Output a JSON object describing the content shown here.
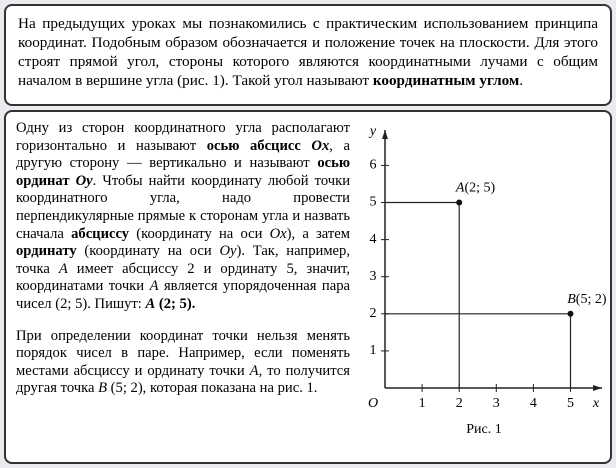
{
  "intro": {
    "runs": [
      {
        "text": "На предыдущих уроках мы познакомились с практическим использованием принципа координат. Подобным образом обозначается и положение точек на плоскости. Для этого строят прямой угол, стороны которого являются координатными лучами с общим началом в вершине угла (рис. 1). Такой угол называют "
      },
      {
        "text": "координатным углом",
        "style": "b"
      },
      {
        "text": "."
      }
    ]
  },
  "paragraphs": [
    {
      "runs": [
        {
          "text": "Одну из сторон координатного угла располагают горизонтально и называют "
        },
        {
          "text": "осью абсцисс ",
          "style": "b"
        },
        {
          "text": "Ox",
          "style": "bi"
        },
        {
          "text": ", а другую сторону — вертикально и называют "
        },
        {
          "text": "осью ординат ",
          "style": "b"
        },
        {
          "text": "Oy",
          "style": "bi"
        },
        {
          "text": ". Чтобы найти координату любой точки координатного угла, надо провести перпендикулярные прямые к сторонам угла и назвать сначала "
        },
        {
          "text": "абсциссу",
          "style": "b"
        },
        {
          "text": " (координату на оси "
        },
        {
          "text": "Ox",
          "style": "i"
        },
        {
          "text": "), а затем "
        },
        {
          "text": "ординату",
          "style": "b"
        },
        {
          "text": " (координату на оси "
        },
        {
          "text": "Oy",
          "style": "i"
        },
        {
          "text": "). Так, например, точка "
        },
        {
          "text": "A",
          "style": "i"
        },
        {
          "text": " имеет абсциссу 2 и ординату 5, значит, координатами точки "
        },
        {
          "text": "A",
          "style": "i"
        },
        {
          "text": " является упорядоченная пара чисел (2; 5). Пишут: "
        },
        {
          "text": "A",
          "style": "bi"
        },
        {
          "text": " (2; 5).",
          "style": "b"
        }
      ]
    },
    {
      "runs": [
        {
          "text": "При определении координат точки нельзя менять порядок чисел в паре. Например, если поменять местами абсциссу и ординату точки "
        },
        {
          "text": "A",
          "style": "i"
        },
        {
          "text": ", то получится другая точка "
        },
        {
          "text": "B",
          "style": "i"
        },
        {
          "text": " (5; 2), которая показана на рис. 1."
        }
      ]
    }
  ],
  "figure": {
    "x_label": "x",
    "y_label": "y",
    "origin": "O",
    "xticks": [
      1,
      2,
      3,
      4,
      5
    ],
    "yticks": [
      1,
      2,
      3,
      4,
      5,
      6
    ],
    "points": [
      {
        "name": "A",
        "coords": "(2; 5)",
        "x": 2,
        "y": 5
      },
      {
        "name": "B",
        "coords": "(5; 2)",
        "x": 5,
        "y": 2
      }
    ],
    "caption": "Рис. 1"
  }
}
